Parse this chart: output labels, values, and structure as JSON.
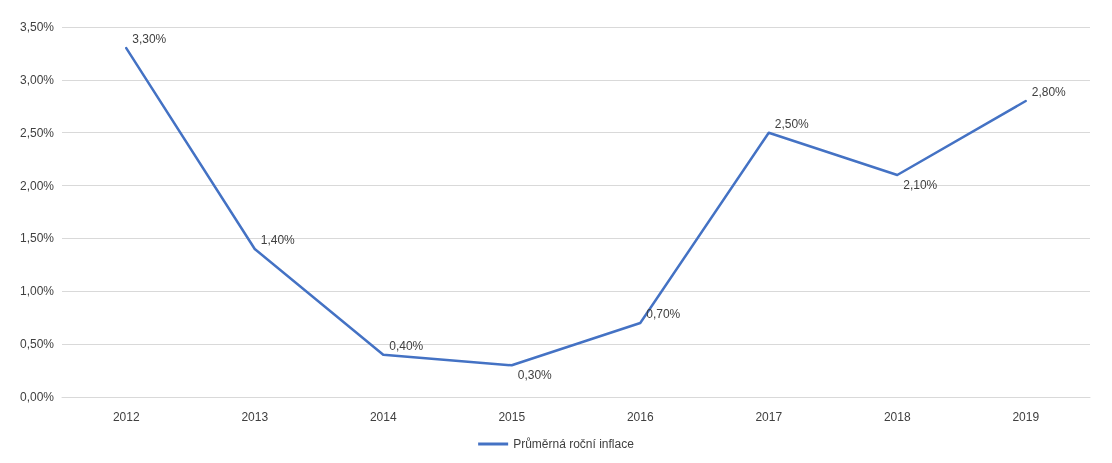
{
  "chart_data": {
    "type": "line",
    "categories": [
      "2012",
      "2013",
      "2014",
      "2015",
      "2016",
      "2017",
      "2018",
      "2019"
    ],
    "series": [
      {
        "name": "Průměrná roční inflace",
        "color": "#4472c4",
        "values": [
          3.3,
          1.4,
          0.4,
          0.3,
          0.7,
          2.5,
          2.1,
          2.8
        ],
        "value_labels": [
          "3,30%",
          "1,40%",
          "0,40%",
          "0,30%",
          "0,70%",
          "2,50%",
          "2,10%",
          "2,80%"
        ]
      }
    ],
    "ylim": [
      0,
      3.5
    ],
    "yticks": [
      {
        "value": 0,
        "label": "0,00%"
      },
      {
        "value": 0.5,
        "label": "0,50%"
      },
      {
        "value": 1,
        "label": "1,00%"
      },
      {
        "value": 1.5,
        "label": "1,50%"
      },
      {
        "value": 2,
        "label": "2,00%"
      },
      {
        "value": 2.5,
        "label": "2,50%"
      },
      {
        "value": 3,
        "label": "3,00%"
      },
      {
        "value": 3.5,
        "label": "3,50%"
      }
    ],
    "grid": "y",
    "legend": "bottom",
    "marker": "none",
    "line_style": "solid"
  }
}
